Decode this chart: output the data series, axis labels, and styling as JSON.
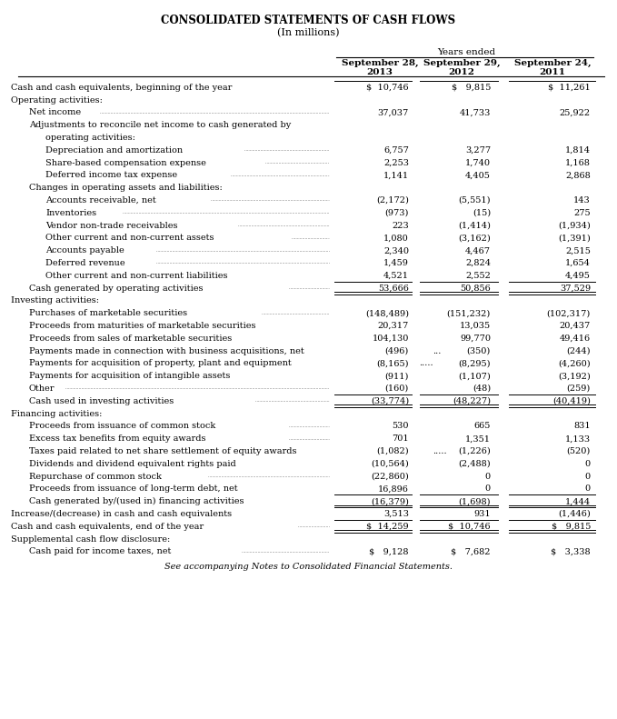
{
  "title": "CONSOLIDATED STATEMENTS OF CASH FLOWS",
  "subtitle": "(In millions)",
  "col_header_label": "Years ended",
  "col_headers": [
    "September 28,\n2013",
    "September 29,\n2012",
    "September 24,\n2011"
  ],
  "rows": [
    {
      "label": "Cash and cash equivalents, beginning of the year",
      "dots": true,
      "indent": 0,
      "vals": [
        "$  10,746",
        "$   9,815",
        "$  11,261"
      ],
      "top_border": true,
      "bottom_border": false
    },
    {
      "label": "Operating activities:",
      "dots": false,
      "indent": 0,
      "vals": [
        "",
        "",
        ""
      ]
    },
    {
      "label": "Net income",
      "dots": true,
      "indent": 1,
      "vals": [
        "37,037",
        "41,733",
        "25,922"
      ]
    },
    {
      "label": "Adjustments to reconcile net income to cash generated by",
      "dots": false,
      "indent": 1,
      "vals": [
        "",
        "",
        ""
      ]
    },
    {
      "label": "operating activities:",
      "dots": false,
      "indent": 2,
      "vals": [
        "",
        "",
        ""
      ]
    },
    {
      "label": "Depreciation and amortization",
      "dots": true,
      "indent": 2,
      "vals": [
        "6,757",
        "3,277",
        "1,814"
      ]
    },
    {
      "label": "Share-based compensation expense",
      "dots": true,
      "indent": 2,
      "vals": [
        "2,253",
        "1,740",
        "1,168"
      ]
    },
    {
      "label": "Deferred income tax expense",
      "dots": true,
      "indent": 2,
      "vals": [
        "1,141",
        "4,405",
        "2,868"
      ]
    },
    {
      "label": "Changes in operating assets and liabilities:",
      "dots": false,
      "indent": 1,
      "vals": [
        "",
        "",
        ""
      ]
    },
    {
      "label": "Accounts receivable, net",
      "dots": true,
      "indent": 2,
      "vals": [
        "(2,172)",
        "(5,551)",
        "143"
      ]
    },
    {
      "label": "Inventories",
      "dots": true,
      "indent": 2,
      "vals": [
        "(973)",
        "(15)",
        "275"
      ]
    },
    {
      "label": "Vendor non-trade receivables",
      "dots": true,
      "indent": 2,
      "vals": [
        "223",
        "(1,414)",
        "(1,934)"
      ]
    },
    {
      "label": "Other current and non-current assets",
      "dots": true,
      "indent": 2,
      "vals": [
        "1,080",
        "(3,162)",
        "(1,391)"
      ]
    },
    {
      "label": "Accounts payable",
      "dots": true,
      "indent": 2,
      "vals": [
        "2,340",
        "4,467",
        "2,515"
      ]
    },
    {
      "label": "Deferred revenue",
      "dots": true,
      "indent": 2,
      "vals": [
        "1,459",
        "2,824",
        "1,654"
      ]
    },
    {
      "label": "Other current and non-current liabilities",
      "dots": true,
      "indent": 2,
      "vals": [
        "4,521",
        "2,552",
        "4,495"
      ]
    },
    {
      "label": "Cash generated by operating activities",
      "dots": true,
      "indent": 1,
      "vals": [
        "53,666",
        "50,856",
        "37,529"
      ],
      "top_border": true,
      "bottom_border": true
    },
    {
      "label": "Investing activities:",
      "dots": false,
      "indent": 0,
      "vals": [
        "",
        "",
        ""
      ]
    },
    {
      "label": "Purchases of marketable securities",
      "dots": true,
      "indent": 1,
      "vals": [
        "(148,489)",
        "(151,232)",
        "(102,317)"
      ]
    },
    {
      "label": "Proceeds from maturities of marketable securities",
      "dots": true,
      "indent": 1,
      "vals": [
        "20,317",
        "13,035",
        "20,437"
      ]
    },
    {
      "label": "Proceeds from sales of marketable securities",
      "dots": true,
      "indent": 1,
      "vals": [
        "104,130",
        "99,770",
        "49,416"
      ]
    },
    {
      "label": "Payments made in connection with business acquisitions, net",
      "dots": true,
      "indent": 1,
      "vals": [
        "(496)",
        "(350)",
        "(244)"
      ],
      "extra_dots": "..."
    },
    {
      "label": "Payments for acquisition of property, plant and equipment",
      "dots": true,
      "indent": 1,
      "vals": [
        "(8,165)",
        "(8,295)",
        "(4,260)"
      ],
      "extra_dots": "....."
    },
    {
      "label": "Payments for acquisition of intangible assets",
      "dots": true,
      "indent": 1,
      "vals": [
        "(911)",
        "(1,107)",
        "(3,192)"
      ]
    },
    {
      "label": "Other",
      "dots": true,
      "indent": 1,
      "vals": [
        "(160)",
        "(48)",
        "(259)"
      ]
    },
    {
      "label": "Cash used in investing activities",
      "dots": true,
      "indent": 1,
      "vals": [
        "(33,774)",
        "(48,227)",
        "(40,419)"
      ],
      "top_border": true,
      "bottom_border": true
    },
    {
      "label": "Financing activities:",
      "dots": false,
      "indent": 0,
      "vals": [
        "",
        "",
        ""
      ]
    },
    {
      "label": "Proceeds from issuance of common stock",
      "dots": true,
      "indent": 1,
      "vals": [
        "530",
        "665",
        "831"
      ]
    },
    {
      "label": "Excess tax benefits from equity awards",
      "dots": true,
      "indent": 1,
      "vals": [
        "701",
        "1,351",
        "1,133"
      ]
    },
    {
      "label": "Taxes paid related to net share settlement of equity awards",
      "dots": true,
      "indent": 1,
      "vals": [
        "(1,082)",
        "(1,226)",
        "(520)"
      ],
      "extra_dots": "....."
    },
    {
      "label": "Dividends and dividend equivalent rights paid",
      "dots": true,
      "indent": 1,
      "vals": [
        "(10,564)",
        "(2,488)",
        "0"
      ]
    },
    {
      "label": "Repurchase of common stock",
      "dots": true,
      "indent": 1,
      "vals": [
        "(22,860)",
        "0",
        "0"
      ]
    },
    {
      "label": "Proceeds from issuance of long-term debt, net",
      "dots": true,
      "indent": 1,
      "vals": [
        "16,896",
        "0",
        "0"
      ]
    },
    {
      "label": "Cash generated by/(used in) financing activities",
      "dots": true,
      "indent": 1,
      "vals": [
        "(16,379)",
        "(1,698)",
        "1,444"
      ],
      "top_border": true,
      "bottom_border": true
    },
    {
      "label": "Increase/(decrease) in cash and cash equivalents",
      "dots": true,
      "indent": 0,
      "vals": [
        "3,513",
        "931",
        "(1,446)"
      ]
    },
    {
      "label": "Cash and cash equivalents, end of the year",
      "dots": true,
      "indent": 0,
      "vals": [
        "$  14,259",
        "$  10,746",
        "$   9,815"
      ],
      "top_border": true,
      "bottom_border": true
    },
    {
      "label": "Supplemental cash flow disclosure:",
      "dots": false,
      "indent": 0,
      "vals": [
        "",
        "",
        ""
      ]
    },
    {
      "label": "Cash paid for income taxes, net",
      "dots": true,
      "indent": 1,
      "vals": [
        "$   9,128",
        "$   7,682",
        "$   3,338"
      ]
    }
  ],
  "footer": "See accompanying Notes to Consolidated Financial Statements."
}
